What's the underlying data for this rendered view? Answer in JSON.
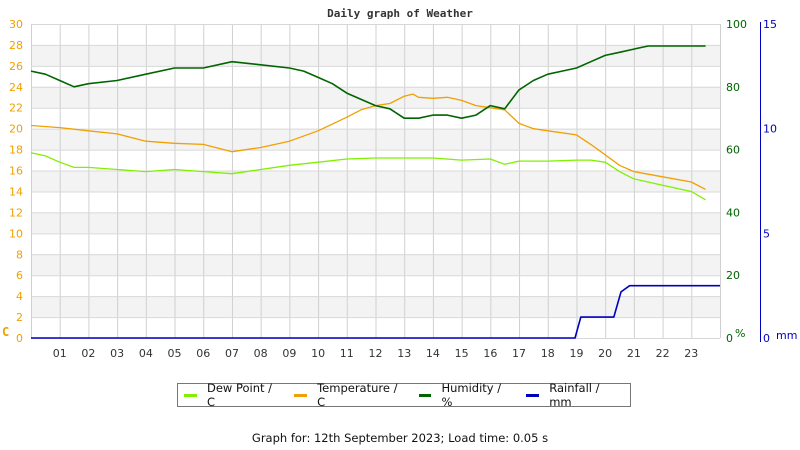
{
  "chart_data": {
    "type": "line",
    "title": "Daily graph of Weather",
    "xlabel": "",
    "x_ticks": [
      "01",
      "02",
      "03",
      "04",
      "05",
      "06",
      "07",
      "08",
      "09",
      "10",
      "11",
      "12",
      "13",
      "14",
      "15",
      "16",
      "17",
      "18",
      "19",
      "20",
      "21",
      "22",
      "23"
    ],
    "x_range_hours": [
      0,
      24
    ],
    "axes": {
      "left": {
        "unit": "C",
        "range": [
          0,
          30
        ],
        "ticks": [
          0,
          2,
          4,
          6,
          8,
          10,
          12,
          14,
          16,
          18,
          20,
          22,
          24,
          26,
          28,
          30
        ],
        "color": "#f0a000"
      },
      "right1": {
        "unit": "%",
        "range": [
          0,
          100
        ],
        "ticks": [
          0,
          20,
          40,
          60,
          80,
          100
        ],
        "color": "#006400"
      },
      "right2": {
        "unit": "mm",
        "range": [
          0,
          15
        ],
        "ticks": [
          0,
          5,
          10,
          15
        ],
        "color": "#0000c0"
      }
    },
    "grid": true,
    "legend_position": "bottom",
    "series": [
      {
        "name": "Dew Point / C",
        "axis": "left",
        "color": "#80f000",
        "x": [
          0,
          0.5,
          1,
          1.5,
          2,
          3,
          4,
          5,
          6,
          7,
          8,
          9,
          10,
          11,
          12,
          13,
          14,
          15,
          16,
          16.5,
          17,
          18,
          19,
          19.5,
          20,
          20.5,
          21,
          22,
          23,
          23.5
        ],
        "values": [
          17.7,
          17.4,
          16.8,
          16.3,
          16.3,
          16.1,
          15.9,
          16.1,
          15.9,
          15.7,
          16.1,
          16.5,
          16.8,
          17.1,
          17.2,
          17.2,
          17.2,
          17.0,
          17.1,
          16.6,
          16.9,
          16.9,
          17.0,
          17.0,
          16.8,
          15.9,
          15.2,
          14.6,
          14.0,
          13.2
        ]
      },
      {
        "name": "Temperature / C",
        "axis": "left",
        "color": "#f0a000",
        "x": [
          0,
          1,
          2,
          3,
          4,
          5,
          6,
          7,
          8,
          9,
          10,
          11,
          11.5,
          12,
          12.5,
          13,
          13.3,
          13.5,
          14,
          14.5,
          15,
          15.5,
          16,
          16.5,
          17,
          17.5,
          18,
          19,
          19.5,
          20,
          20.5,
          21,
          22,
          23,
          23.5
        ],
        "values": [
          20.3,
          20.1,
          19.8,
          19.5,
          18.8,
          18.6,
          18.5,
          17.8,
          18.2,
          18.8,
          19.8,
          21.1,
          21.8,
          22.2,
          22.4,
          23.1,
          23.3,
          23.0,
          22.9,
          23.0,
          22.7,
          22.2,
          22.0,
          21.8,
          20.5,
          20.0,
          19.8,
          19.4,
          18.5,
          17.5,
          16.5,
          15.9,
          15.4,
          14.9,
          14.2
        ]
      },
      {
        "name": "Humidity / %",
        "axis": "right1",
        "color": "#006400",
        "x": [
          0,
          0.5,
          1,
          1.5,
          2,
          3,
          4,
          5,
          6,
          7,
          8,
          9,
          9.5,
          10,
          10.5,
          11,
          11.5,
          12,
          12.5,
          13,
          13.5,
          14,
          14.5,
          15,
          15.5,
          16,
          16.5,
          17,
          17.5,
          18,
          18.5,
          19,
          19.5,
          20,
          20.5,
          21,
          21.5,
          22,
          23,
          23.5
        ],
        "values": [
          85,
          84,
          82,
          80,
          81,
          82,
          84,
          86,
          86,
          88,
          87,
          86,
          85,
          83,
          81,
          78,
          76,
          74,
          73,
          70,
          70,
          71,
          71,
          70,
          71,
          74,
          73,
          79,
          82,
          84,
          85,
          86,
          88,
          90,
          91,
          92,
          93,
          93,
          93,
          93
        ]
      },
      {
        "name": "Rainfall / mm",
        "axis": "right2",
        "color": "#0000c0",
        "x": [
          0,
          18.95,
          19.15,
          20.3,
          20.55,
          20.85,
          24
        ],
        "values": [
          0,
          0,
          1.0,
          1.0,
          2.2,
          2.5,
          2.5
        ]
      }
    ]
  },
  "legend": {
    "items": [
      {
        "label": "Dew Point / C",
        "color": "#80f000"
      },
      {
        "label": "Temperature / C",
        "color": "#f0a000"
      },
      {
        "label": "Humidity / %",
        "color": "#006400"
      },
      {
        "label": "Rainfall / mm",
        "color": "#0000c0"
      }
    ]
  },
  "axis_labels": {
    "left_unit": "C",
    "right1_unit": "%",
    "right2_unit": "mm"
  },
  "footer": {
    "text": "Graph for: 12th September 2023; Load time: 0.05 s"
  }
}
